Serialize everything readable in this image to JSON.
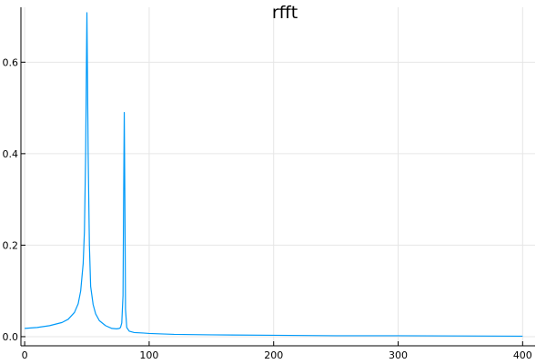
{
  "chart_data": {
    "type": "line",
    "title": "rfft",
    "xlabel": "",
    "ylabel": "",
    "xlim": [
      -3,
      410
    ],
    "ylim": [
      -0.02,
      0.72
    ],
    "xticks": [
      0,
      100,
      200,
      300,
      400
    ],
    "yticks": [
      0.0,
      0.2,
      0.4,
      0.6
    ],
    "xtick_labels": [
      "0",
      "100",
      "200",
      "300",
      "400"
    ],
    "ytick_labels": [
      "0.0",
      "0.2",
      "0.4",
      "0.6"
    ],
    "grid": true,
    "legend": "none",
    "series": [
      {
        "color": "#009af9",
        "x": [
          0,
          10,
          20,
          30,
          35,
          40,
          43,
          45,
          47,
          48,
          49,
          49.5,
          50,
          50.5,
          51,
          52,
          53,
          55,
          57,
          60,
          65,
          70,
          74,
          76,
          77,
          78,
          79,
          79.5,
          80,
          80.5,
          81,
          82,
          84,
          88,
          95,
          100,
          120,
          150,
          200,
          250,
          300,
          350,
          400
        ],
        "y": [
          0.018,
          0.02,
          0.024,
          0.031,
          0.038,
          0.053,
          0.072,
          0.1,
          0.16,
          0.23,
          0.4,
          0.56,
          0.708,
          0.56,
          0.4,
          0.2,
          0.11,
          0.07,
          0.05,
          0.035,
          0.024,
          0.018,
          0.017,
          0.018,
          0.02,
          0.03,
          0.09,
          0.3,
          0.49,
          0.3,
          0.06,
          0.02,
          0.012,
          0.009,
          0.008,
          0.007,
          0.005,
          0.004,
          0.003,
          0.002,
          0.002,
          0.0015,
          0.001
        ]
      }
    ]
  }
}
